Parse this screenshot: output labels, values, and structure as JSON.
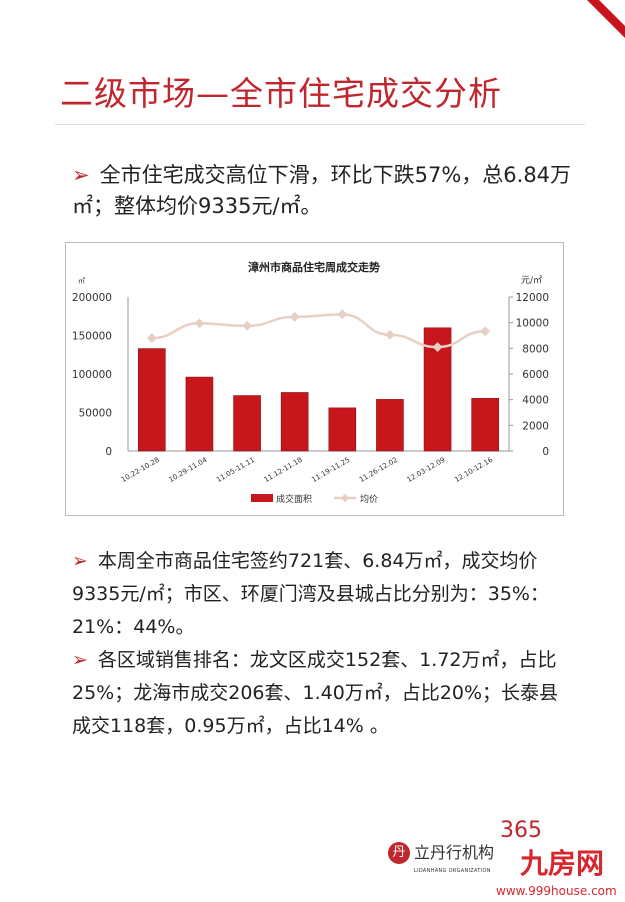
{
  "title": "二级市场—全市住宅成交分析",
  "bullet_marker": "➢",
  "summary": "全市住宅成交高位下滑，环比下跌57%，总6.84万㎡；整体均价9335元/㎡。",
  "paragraphs": [
    "本周全市商品住宅签约721套、6.84万㎡，成交均价9335元/㎡；市区、环厦门湾及县城占比分别为：35%：21%：44%。",
    "各区域销售排名：龙文区成交152套、1.72万㎡，占比25%；龙海市成交206套、1.40万㎡，占比20%；长泰县成交118套，0.95万㎡，占比14% 。"
  ],
  "chart_data": {
    "type": "bar+line",
    "title": "漳州市商品住宅周成交走势",
    "ylabel_left": "㎡",
    "ylabel_right": "元/㎡",
    "ylim_left": [
      0,
      200000
    ],
    "ylim_right": [
      0,
      12000
    ],
    "yticks_left": [
      "0",
      "50000",
      "100000",
      "150000",
      "200000"
    ],
    "yticks_right": [
      "0",
      "2000",
      "4000",
      "6000",
      "8000",
      "10000",
      "12000"
    ],
    "categories": [
      "10.22-10.28",
      "10.29-11.04",
      "11.05-11.11",
      "11.12-11.18",
      "11.19-11.25",
      "11.26-12.02",
      "12.03-12.09",
      "12.10-12.16"
    ],
    "series": [
      {
        "name": "成交面积",
        "type": "bar",
        "axis": "left",
        "color": "#c8161d",
        "values": [
          133000,
          96000,
          72000,
          76000,
          56000,
          67000,
          160000,
          68400
        ]
      },
      {
        "name": "均价",
        "type": "line",
        "axis": "right",
        "color": "#e8cfc4",
        "values": [
          8800,
          9950,
          9750,
          10450,
          10650,
          9050,
          8100,
          9335
        ]
      }
    ],
    "legend": "bottom",
    "grid": false
  },
  "footer": {
    "logo_mark": "丹",
    "logo_text": "立丹行机构",
    "logo_sub": "LIDANHANG ORGANIZATION",
    "badge": "365",
    "watermark": "九房网",
    "watermark_url": "www.999house.com"
  }
}
